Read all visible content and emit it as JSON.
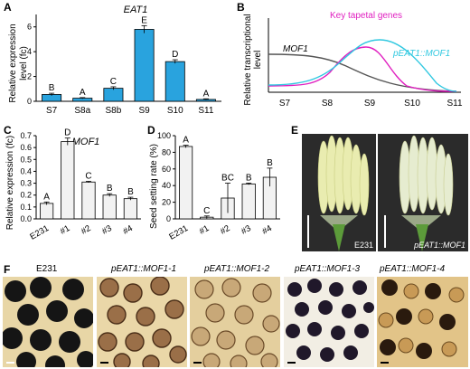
{
  "panels": {
    "a": {
      "letter": "A",
      "gene": "EAT1",
      "ylabel_1": "Relative expression",
      "ylabel_2": "level (fc)",
      "yticks": [
        "0",
        "2",
        "4",
        "6"
      ]
    },
    "b": {
      "letter": "B",
      "ylabel_1": "Relative transcriptional",
      "ylabel_2": "level",
      "series_mof1": "MOF1",
      "series_key": "Key tapetal genes",
      "series_peat": "pEAT1::MOF1",
      "xticks": [
        "S7",
        "S8",
        "S9",
        "S10",
        "S11"
      ]
    },
    "c": {
      "letter": "C",
      "gene": "MOF1",
      "ylabel": "Relative expression (fc)",
      "yticks": [
        "0.0",
        "0.1",
        "0.2",
        "0.3",
        "0.4",
        "0.5",
        "0.6",
        "0.7"
      ]
    },
    "d": {
      "letter": "D",
      "ylabel": "Seed setting rate (%)",
      "yticks": [
        "0",
        "20",
        "40",
        "60",
        "80",
        "100"
      ]
    },
    "e": {
      "letter": "E",
      "label_left": "E231",
      "label_right": "pEAT1::MOF1"
    },
    "f": {
      "letter": "F",
      "titles": [
        "E231",
        "pEAT1::MOF1-1",
        "pEAT1::MOF1-2",
        "pEAT1::MOF1-3",
        "pEAT1::MOF1-4"
      ]
    }
  },
  "colors": {
    "bar_a": "#29a3de",
    "bar_cd": "#f2f2f2",
    "mof1_line": "#555555",
    "key_line": "#e020c0",
    "peat_line": "#30c8e0"
  },
  "chart_data": [
    {
      "type": "bar",
      "title": "EAT1",
      "categories": [
        "S7",
        "S8a",
        "S8b",
        "S9",
        "S10",
        "S11"
      ],
      "values": [
        0.55,
        0.25,
        1.05,
        5.8,
        3.2,
        0.15
      ],
      "errors": [
        0.1,
        0.05,
        0.12,
        0.3,
        0.15,
        0.05
      ],
      "letters": [
        "B",
        "A",
        "C",
        "E",
        "D",
        "A"
      ],
      "ylim": [
        0,
        7
      ],
      "ylabel": "Relative expression level (fc)"
    },
    {
      "type": "line",
      "categories": [
        "S7",
        "S8",
        "S9",
        "S10",
        "S11"
      ],
      "series": [
        {
          "name": "MOF1"
        },
        {
          "name": "Key tapetal genes"
        },
        {
          "name": "pEAT1::MOF1"
        }
      ],
      "ylabel": "Relative transcriptional level"
    },
    {
      "type": "bar",
      "title": "MOF1",
      "categories": [
        "E231",
        "#1",
        "#2",
        "#3",
        "#4"
      ],
      "values": [
        0.13,
        0.65,
        0.31,
        0.2,
        0.17
      ],
      "errors": [
        0.012,
        0.03,
        0.006,
        0.012,
        0.012
      ],
      "letters": [
        "A",
        "D",
        "C",
        "B",
        "B"
      ],
      "ylim": [
        0,
        0.7
      ],
      "ylabel": "Relative expression (fc)"
    },
    {
      "type": "bar",
      "categories": [
        "E231",
        "#1",
        "#2",
        "#3",
        "#4"
      ],
      "values": [
        87,
        2,
        25,
        42,
        50
      ],
      "errors": [
        1.5,
        1.5,
        18,
        1,
        11
      ],
      "letters": [
        "A",
        "C",
        "BC",
        "B",
        "B"
      ],
      "ylim": [
        0,
        100
      ],
      "ylabel": "Seed setting rate (%)"
    }
  ]
}
